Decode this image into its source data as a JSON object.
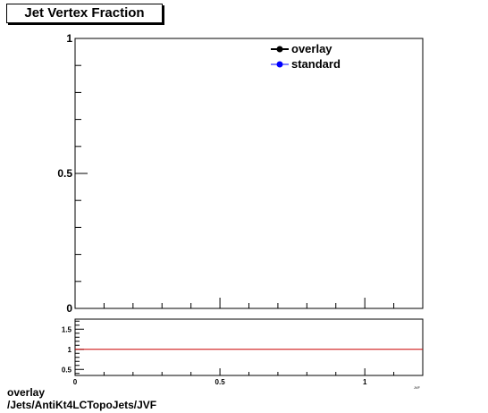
{
  "title": "Jet Vertex Fraction",
  "footer": {
    "line1": "overlay",
    "line2": "/Jets/AntiKt4LCTopoJets/JVF"
  },
  "colors": {
    "overlay": "#000000",
    "standard": "#0000ff",
    "ratio_line": "#cc0000"
  },
  "chart_data": [
    {
      "type": "line",
      "title": "Jet Vertex Fraction",
      "xlim": [
        0,
        1.2
      ],
      "ylim": [
        0,
        1
      ],
      "y_ticks": [
        "0",
        "0.5",
        "1"
      ],
      "legend": {
        "placement": "top-right",
        "entries": [
          "overlay",
          "standard"
        ]
      },
      "series": [
        {
          "name": "overlay",
          "values": []
        },
        {
          "name": "standard",
          "values": []
        }
      ]
    },
    {
      "type": "line",
      "xlim": [
        0,
        1.2
      ],
      "ylim": [
        0.35,
        1.75
      ],
      "x_ticks": [
        "0",
        "0.5",
        "1"
      ],
      "y_ticks": [
        "0.5",
        "1",
        "1.5"
      ],
      "xlabel_fragment": "JVF",
      "reference_line": 1
    }
  ]
}
